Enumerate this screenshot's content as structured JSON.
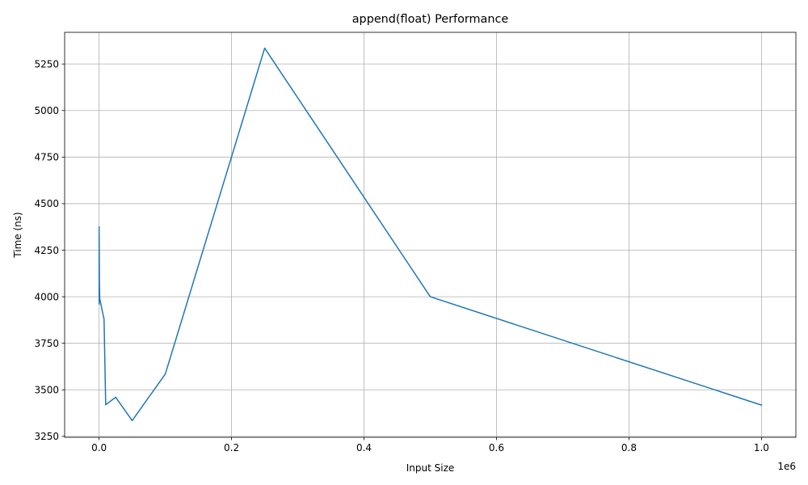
{
  "chart_data": {
    "type": "line",
    "title": "append(float) Performance",
    "xlabel": "Input Size",
    "ylabel": "Time (ns)",
    "x_offset_text": "1e6",
    "xlim": [
      -52000,
      1052000
    ],
    "ylim": [
      3245,
      5420
    ],
    "x_ticks": [
      0,
      200000,
      400000,
      600000,
      800000,
      1000000
    ],
    "x_tick_labels": [
      "0.0",
      "0.2",
      "0.4",
      "0.6",
      "0.8",
      "1.0"
    ],
    "y_ticks": [
      3250,
      3500,
      3750,
      4000,
      4250,
      4500,
      4750,
      5000,
      5250
    ],
    "y_tick_labels": [
      "3250",
      "3500",
      "3750",
      "4000",
      "4250",
      "4500",
      "4750",
      "5000",
      "5250"
    ],
    "grid": true,
    "series": [
      {
        "color": "#1f77b4",
        "x": [
          10,
          50,
          100,
          500,
          1000,
          5000,
          7500,
          10000,
          25000,
          50000,
          100000,
          250000,
          500000,
          1000000
        ],
        "y": [
          4375,
          3960,
          4330,
          4070,
          3990,
          3920,
          3880,
          3420,
          3460,
          3335,
          3585,
          5335,
          4000,
          3418
        ]
      }
    ]
  }
}
